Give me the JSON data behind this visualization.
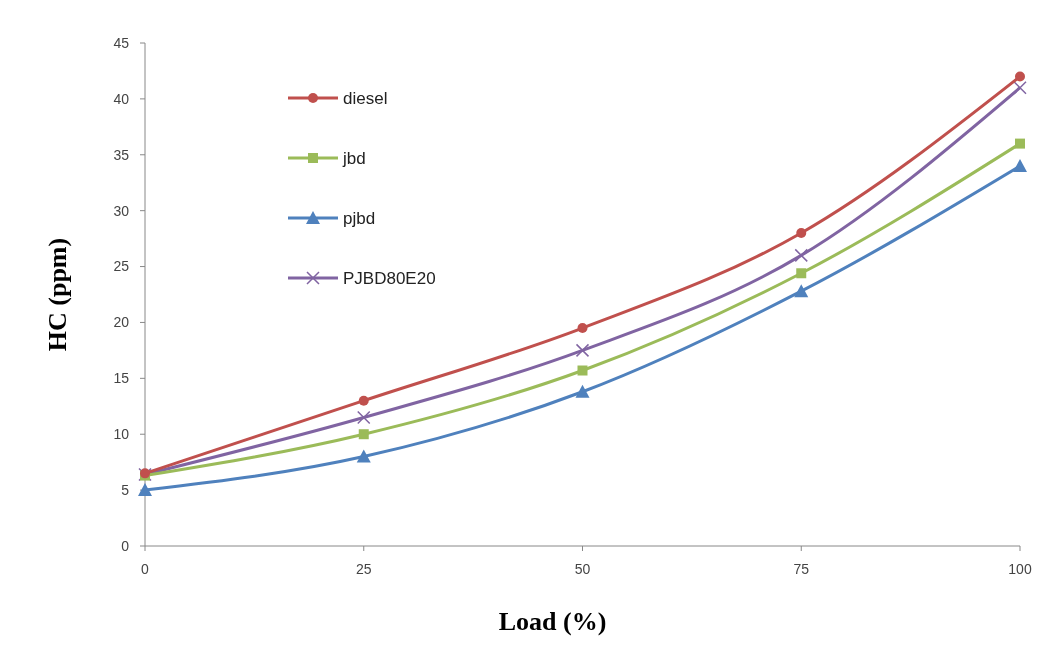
{
  "chart_data": {
    "type": "line",
    "xlabel": "Load (%)",
    "ylabel": "HC (ppm)",
    "x": [
      0,
      25,
      50,
      75,
      100
    ],
    "xlim": [
      0,
      100
    ],
    "xticks": [
      0,
      25,
      50,
      75,
      100
    ],
    "ylim": [
      0,
      45
    ],
    "yticks": [
      0,
      5,
      10,
      15,
      20,
      25,
      30,
      35,
      40,
      45
    ],
    "grid": false,
    "legend": "top left",
    "series": [
      {
        "name": "diesel",
        "color": "#c0504d",
        "marker": "circle",
        "values": [
          6.5,
          13,
          19.5,
          28,
          42
        ]
      },
      {
        "name": "jbd",
        "color": "#9bbb59",
        "marker": "square",
        "values": [
          6.3,
          10,
          15.7,
          24.4,
          36
        ]
      },
      {
        "name": "pjbd",
        "color": "#4f81bd",
        "marker": "triangle",
        "values": [
          5,
          8,
          13.8,
          22.8,
          34
        ]
      },
      {
        "name": "PJBD80E20",
        "color": "#8064a2",
        "marker": "cross",
        "values": [
          6.4,
          11.5,
          17.5,
          26,
          41
        ]
      }
    ]
  }
}
